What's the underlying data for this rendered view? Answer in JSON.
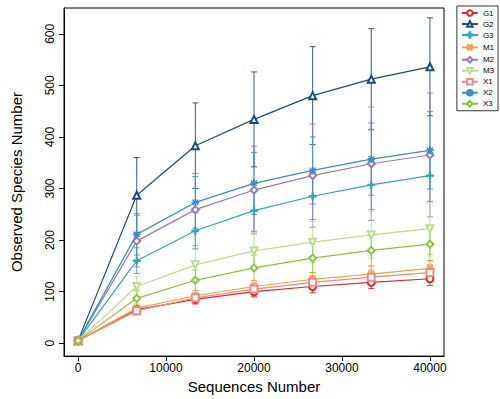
{
  "chart_data": {
    "type": "line",
    "x_label": "Sequences Number",
    "y_label": "Observed Species Number",
    "x": [
      0,
      6667,
      13333,
      20000,
      26667,
      33333,
      40000
    ],
    "xlim": [
      -1600,
      41600
    ],
    "xticks": [
      0,
      10000,
      20000,
      30000,
      40000
    ],
    "ylim": [
      -25,
      650
    ],
    "yticks": [
      0,
      100,
      200,
      300,
      400,
      500,
      600
    ],
    "grid": false,
    "legend": "upper right",
    "series": [
      {
        "name": "G1",
        "color": "#e3262b",
        "marker": "circle",
        "values": [
          5,
          65,
          85,
          100,
          110,
          118,
          125
        ],
        "error": [
          0,
          8,
          9,
          10,
          12,
          12,
          13
        ]
      },
      {
        "name": "G2",
        "color": "#1f4a80",
        "marker": "triangle",
        "values": [
          5,
          287,
          383,
          434,
          480,
          512,
          536
        ],
        "error": [
          0,
          73,
          83,
          92,
          95,
          98,
          95
        ]
      },
      {
        "name": "G3",
        "color": "#37a5b8",
        "marker": "plus",
        "values": [
          5,
          160,
          218,
          257,
          285,
          307,
          325
        ],
        "error": [
          0,
          25,
          35,
          40,
          45,
          48,
          50
        ]
      },
      {
        "name": "M1",
        "color": "#f2a33a",
        "marker": "x",
        "values": [
          5,
          68,
          92,
          110,
          124,
          134,
          145
        ],
        "error": [
          0,
          8,
          10,
          12,
          13,
          14,
          15
        ]
      },
      {
        "name": "M2",
        "color": "#9a7ab5",
        "marker": "diamond",
        "values": [
          5,
          198,
          259,
          297,
          325,
          348,
          365
        ],
        "error": [
          0,
          50,
          70,
          85,
          100,
          110,
          120
        ]
      },
      {
        "name": "M3",
        "color": "#bcdc8c",
        "marker": "triangle-down",
        "values": [
          5,
          110,
          152,
          179,
          196,
          210,
          222
        ],
        "error": [
          0,
          20,
          30,
          35,
          40,
          45,
          50
        ]
      },
      {
        "name": "X1",
        "color": "#f08a80",
        "marker": "square",
        "values": [
          5,
          63,
          88,
          105,
          118,
          128,
          137
        ],
        "error": [
          0,
          8,
          10,
          12,
          13,
          14,
          15
        ]
      },
      {
        "name": "X2",
        "color": "#3b8dc5",
        "marker": "star",
        "values": [
          5,
          211,
          273,
          310,
          335,
          357,
          374
        ],
        "error": [
          0,
          40,
          50,
          60,
          65,
          70,
          75
        ]
      },
      {
        "name": "X3",
        "color": "#8cc43f",
        "marker": "diamond",
        "values": [
          5,
          87,
          122,
          146,
          165,
          180,
          192
        ],
        "error": [
          0,
          15,
          20,
          25,
          28,
          30,
          32
        ]
      }
    ]
  }
}
